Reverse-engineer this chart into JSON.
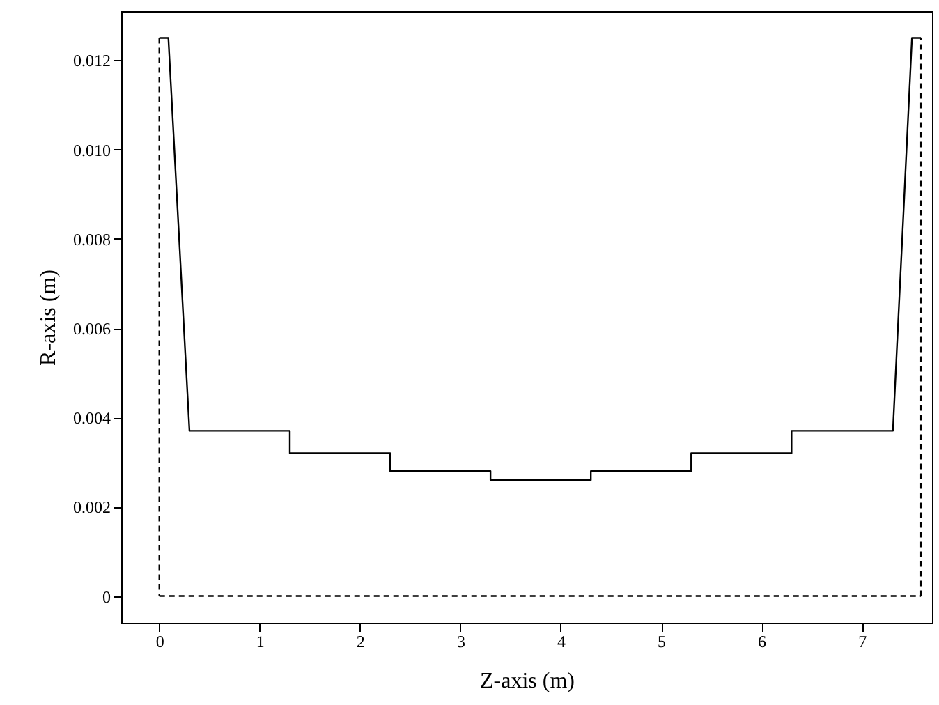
{
  "chart_data": {
    "type": "line",
    "xlabel": "Z-axis (m)",
    "ylabel": "R-axis (m)",
    "series": [
      {
        "color": "#000000",
        "line_style": "solid",
        "x": [
          0,
          0.09,
          0.3,
          1.3,
          1.3,
          2.3,
          2.3,
          3.3,
          3.3,
          4.3,
          4.3,
          5.3,
          5.3,
          6.3,
          6.3,
          7.31,
          7.5,
          7.59
        ],
        "values": [
          0.0125,
          0.0125,
          0.0037,
          0.0037,
          0.0032,
          0.0032,
          0.0028,
          0.0028,
          0.0026,
          0.0026,
          0.0028,
          0.0028,
          0.0032,
          0.0032,
          0.0037,
          0.0037,
          0.0125,
          0.0125
        ]
      },
      {
        "color": "#000000",
        "line_style": "dashed",
        "x": [
          0,
          0
        ],
        "values": [
          0.0125,
          0
        ]
      },
      {
        "color": "#000000",
        "line_style": "dashed",
        "x": [
          0,
          7.59
        ],
        "values": [
          0,
          0
        ]
      },
      {
        "color": "#000000",
        "line_style": "dashed",
        "x": [
          7.59,
          7.59
        ],
        "values": [
          0,
          0.0125
        ]
      }
    ],
    "xlim": [
      -0.38,
      7.7
    ],
    "ylim": [
      -0.0006,
      0.0131
    ],
    "xticks": [
      0,
      1,
      2,
      3,
      4,
      5,
      6,
      7
    ],
    "yticks": [
      0,
      0.002,
      0.004,
      0.006,
      0.008,
      {
        "value": 0.01,
        "label": "0.010"
      },
      0.012
    ],
    "grid": false,
    "marker": "none"
  }
}
